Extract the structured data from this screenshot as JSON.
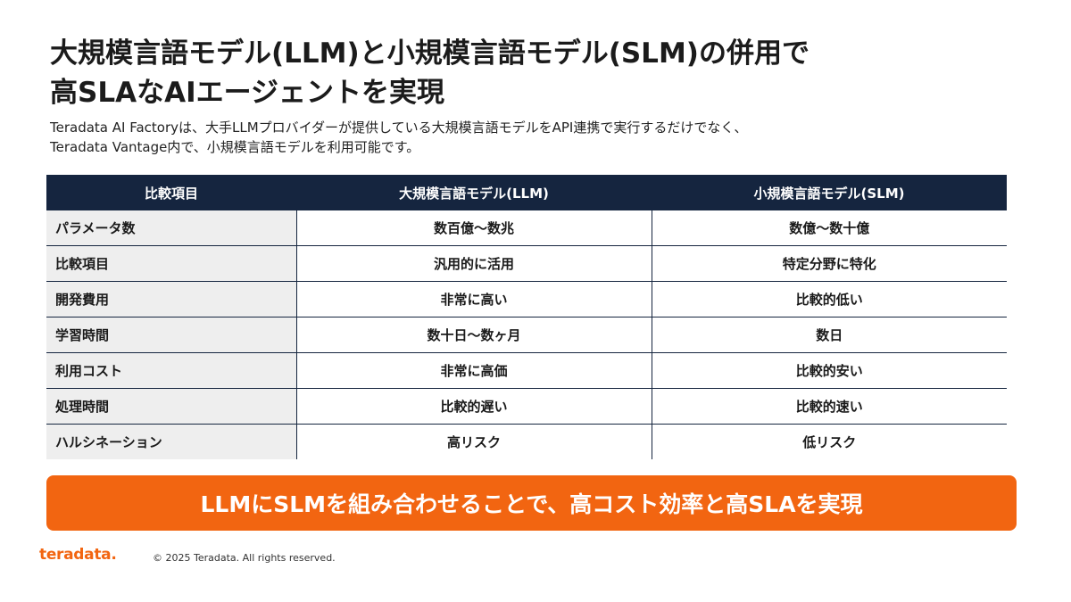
{
  "title": {
    "line1": "大規模言語モデル(LLM)と小規模言語モデル(SLM)の併用で",
    "line2": "高SLAなAIエージェントを実現"
  },
  "subtitle": {
    "line1": "Teradata AI Factoryは、大手LLMプロバイダーが提供している大規模言語モデルをAPI連携で実行するだけでなく、",
    "line2": "Teradata Vantage内で、小規模言語モデルを利用可能です。"
  },
  "table": {
    "headers": [
      "比較項目",
      "大規模言語モデル(LLM)",
      "小規模言語モデル(SLM)"
    ],
    "rows": [
      [
        "パラメータ数",
        "数百億〜数兆",
        "数億〜数十億"
      ],
      [
        "比較項目",
        "汎用的に活用",
        "特定分野に特化"
      ],
      [
        "開発費用",
        "非常に高い",
        "比較的低い"
      ],
      [
        "学習時間",
        "数十日〜数ヶ月",
        "数日"
      ],
      [
        "利用コスト",
        "非常に高価",
        "比較的安い"
      ],
      [
        "処理時間",
        "比較的遅い",
        "比較的速い"
      ],
      [
        "ハルシネーション",
        "高リスク",
        "低リスク"
      ]
    ]
  },
  "banner": {
    "text": "LLMにSLMを組み合わせることで、高コスト効率と高SLAを実現"
  },
  "footer": {
    "logo": "teradata.",
    "copyright": "© 2025 Teradata. All rights reserved."
  },
  "colors": {
    "header_bg": "#15253f",
    "accent": "#f26511",
    "rowhead_bg": "#eeeeee"
  }
}
